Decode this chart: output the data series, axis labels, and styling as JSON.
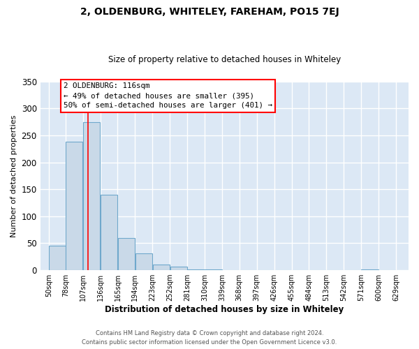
{
  "title": "2, OLDENBURG, WHITELEY, FAREHAM, PO15 7EJ",
  "subtitle": "Size of property relative to detached houses in Whiteley",
  "xlabel": "Distribution of detached houses by size in Whiteley",
  "ylabel": "Number of detached properties",
  "footer_line1": "Contains HM Land Registry data © Crown copyright and database right 2024.",
  "footer_line2": "Contains public sector information licensed under the Open Government Licence v3.0.",
  "bar_left_edges": [
    50,
    78,
    107,
    136,
    165,
    194,
    223,
    252,
    281,
    310,
    339,
    368,
    397,
    426,
    455,
    484,
    513,
    542,
    571,
    600
  ],
  "bar_heights": [
    45,
    238,
    275,
    140,
    60,
    31,
    10,
    6,
    2,
    2,
    0,
    0,
    0,
    0,
    0,
    0,
    0,
    0,
    2,
    0
  ],
  "bin_width": 29,
  "x_tick_labels": [
    "50sqm",
    "78sqm",
    "107sqm",
    "136sqm",
    "165sqm",
    "194sqm",
    "223sqm",
    "252sqm",
    "281sqm",
    "310sqm",
    "339sqm",
    "368sqm",
    "397sqm",
    "426sqm",
    "455sqm",
    "484sqm",
    "513sqm",
    "542sqm",
    "571sqm",
    "600sqm",
    "629sqm"
  ],
  "x_tick_positions": [
    50,
    78,
    107,
    136,
    165,
    194,
    223,
    252,
    281,
    310,
    339,
    368,
    397,
    426,
    455,
    484,
    513,
    542,
    571,
    600,
    629
  ],
  "ylim": [
    0,
    350
  ],
  "yticks": [
    0,
    50,
    100,
    150,
    200,
    250,
    300,
    350
  ],
  "xlim": [
    36,
    650
  ],
  "bar_color": "#c9d9e8",
  "bar_edge_color": "#6fa8cc",
  "plot_bg_color": "#dce8f5",
  "figure_bg_color": "#ffffff",
  "grid_color": "#ffffff",
  "red_line_x": 116,
  "annotation_title": "2 OLDENBURG: 116sqm",
  "annotation_line1": "← 49% of detached houses are smaller (395)",
  "annotation_line2": "50% of semi-detached houses are larger (401) →"
}
